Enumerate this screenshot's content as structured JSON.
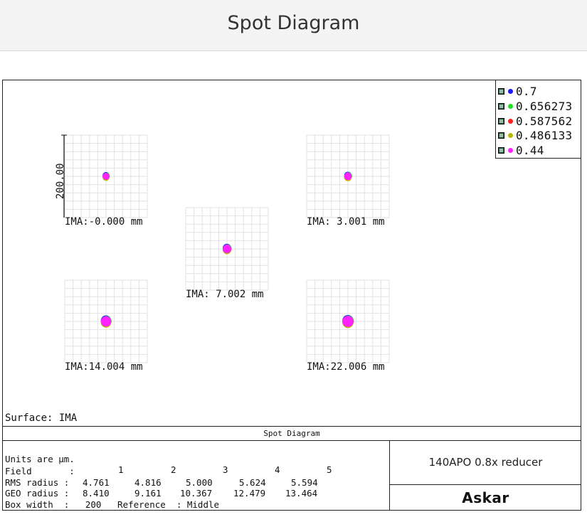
{
  "header": {
    "title": "Spot Diagram"
  },
  "legend": [
    {
      "label": "0.7",
      "color": "#1a1aff"
    },
    {
      "label": "0.656273",
      "color": "#22dd22"
    },
    {
      "label": "0.587562",
      "color": "#ff2020"
    },
    {
      "label": "0.486133",
      "color": "#b8b800"
    },
    {
      "label": "0.44",
      "color": "#ff22ff"
    }
  ],
  "chart_data": {
    "type": "scatter",
    "title": "Spot Diagram",
    "units": "µm",
    "box_width": 200,
    "scale_label": "200.00",
    "grid": true,
    "fields": [
      {
        "label": "IMA:-0.000 mm",
        "rms_radius": 4.761,
        "geo_radius": 8.41,
        "offset": [
          0,
          0
        ]
      },
      {
        "label": "IMA: 3.001 mm",
        "rms_radius": 4.816,
        "geo_radius": 9.161,
        "offset": [
          0,
          0
        ]
      },
      {
        "label": "IMA: 7.002 mm",
        "rms_radius": 5.0,
        "geo_radius": 10.367,
        "offset": [
          0,
          0
        ]
      },
      {
        "label": "IMA:14.004 mm",
        "rms_radius": 5.624,
        "geo_radius": 12.479,
        "offset": [
          0,
          0
        ]
      },
      {
        "label": "IMA:22.006 mm",
        "rms_radius": 5.594,
        "geo_radius": 13.464,
        "offset": [
          0,
          0
        ]
      }
    ],
    "series": [
      {
        "name": "0.7",
        "color": "#1a1aff"
      },
      {
        "name": "0.656273",
        "color": "#22dd22"
      },
      {
        "name": "0.587562",
        "color": "#ff2020"
      },
      {
        "name": "0.486133",
        "color": "#b8b800"
      },
      {
        "name": "0.44",
        "color": "#ff22ff"
      }
    ]
  },
  "surface": "Surface: IMA",
  "strip_title": "Spot Diagram",
  "info": {
    "units_line": "Units are µm.",
    "field_label": "Field       :",
    "field_numbers": [
      "1",
      "2",
      "3",
      "4",
      "5"
    ],
    "rms_label": "RMS radius :",
    "rms_values": [
      "4.761",
      "4.816",
      "5.000",
      "5.624",
      "5.594"
    ],
    "geo_label": "GEO radius :",
    "geo_values": [
      "8.410",
      "9.161",
      "10.367",
      "12.479",
      "13.464"
    ],
    "box_width_line": "Box width  :   200   Reference  : Middle"
  },
  "model": "140APO 0.8x reducer",
  "brand": "Askar"
}
